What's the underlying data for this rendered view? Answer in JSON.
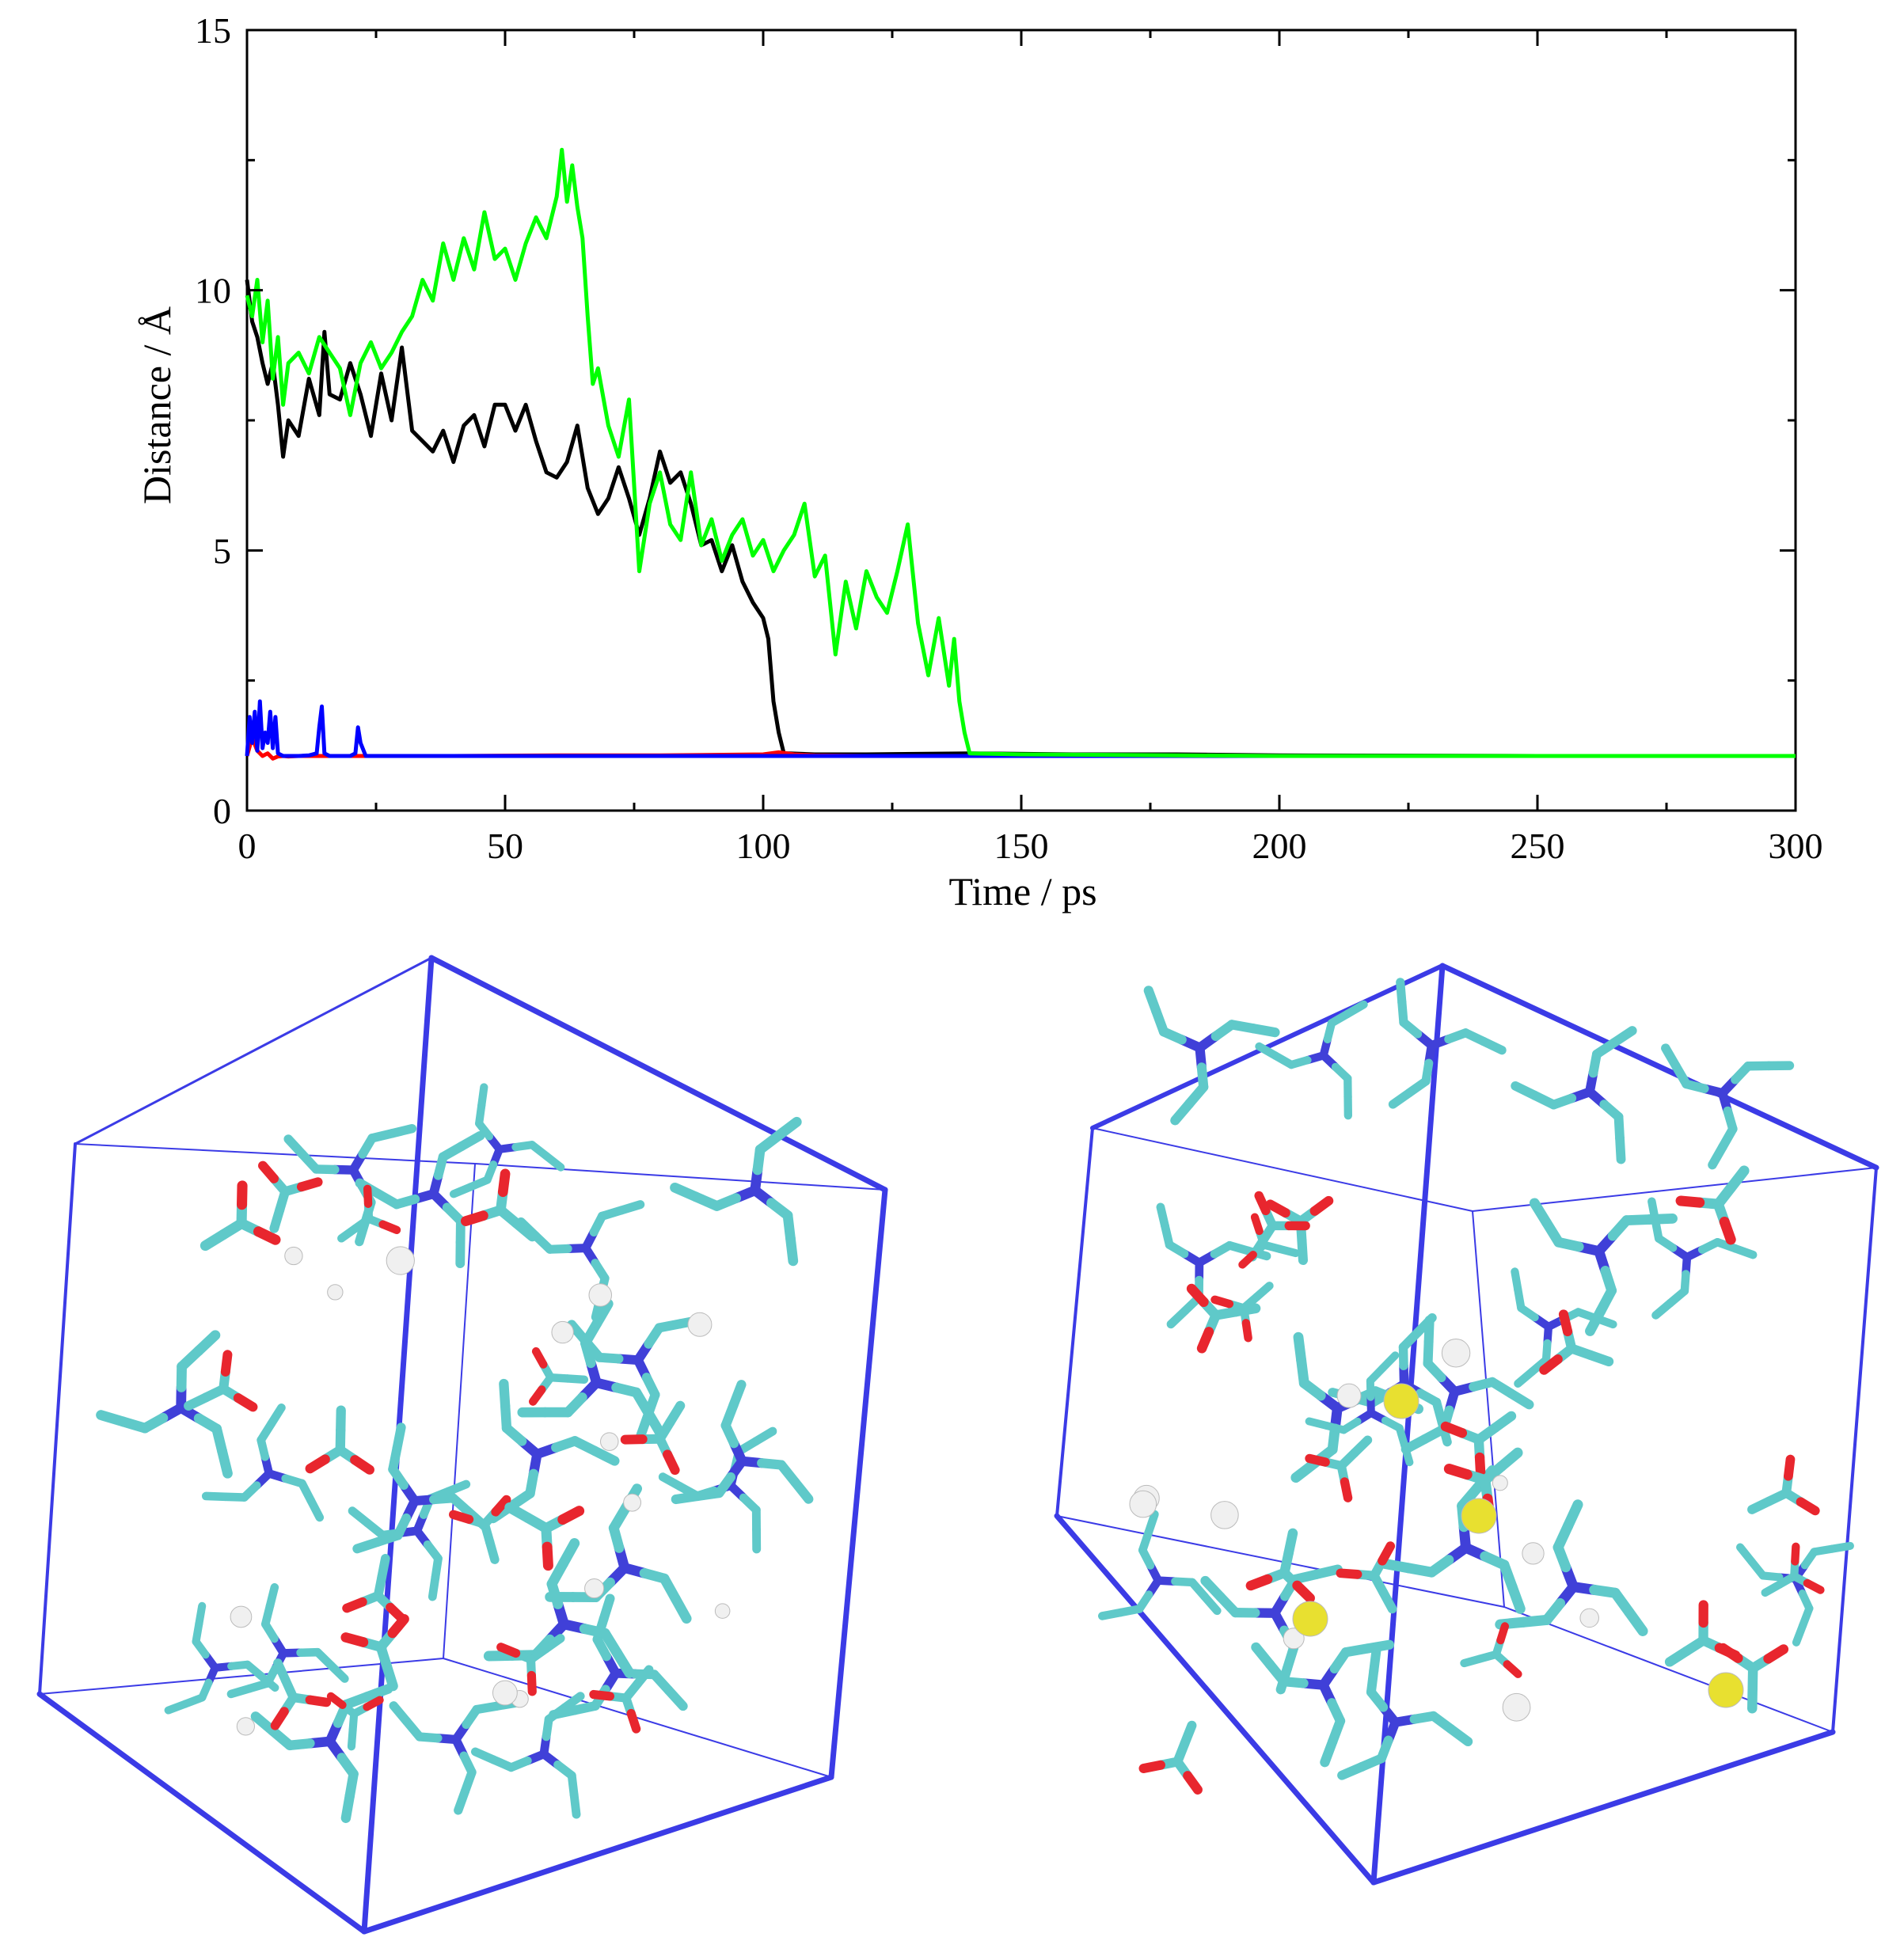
{
  "chart_data": {
    "type": "line",
    "xlabel": "Time / ps",
    "ylabel": "Distance / Å",
    "xlim": [
      0,
      300
    ],
    "ylim": [
      0,
      15
    ],
    "xticks": [
      0,
      50,
      100,
      150,
      200,
      250,
      300
    ],
    "yticks": [
      0,
      5,
      10,
      15
    ],
    "grid": false,
    "series": [
      {
        "color": "#000000",
        "x": [
          0,
          1,
          2,
          3,
          4,
          5,
          6,
          7,
          8,
          10,
          12,
          14,
          15,
          16,
          18,
          20,
          22,
          24,
          26,
          28,
          30,
          32,
          34,
          36,
          38,
          40,
          42,
          44,
          46,
          48,
          50,
          52,
          54,
          56,
          58,
          60,
          62,
          64,
          66,
          68,
          70,
          72,
          74,
          76,
          78,
          80,
          82,
          84,
          86,
          88,
          90,
          92,
          94,
          96,
          98,
          100,
          101,
          102,
          103,
          104,
          105,
          110,
          120,
          140,
          160,
          180,
          200,
          250,
          300
        ],
        "y": [
          10.2,
          9.4,
          9.1,
          8.6,
          8.2,
          8.6,
          7.8,
          6.8,
          7.5,
          7.2,
          8.3,
          7.6,
          9.2,
          8.0,
          7.9,
          8.6,
          8.0,
          7.2,
          8.4,
          7.5,
          8.9,
          7.3,
          7.1,
          6.9,
          7.3,
          6.7,
          7.4,
          7.6,
          7.0,
          7.8,
          7.8,
          7.3,
          7.8,
          7.1,
          6.5,
          6.4,
          6.7,
          7.4,
          6.2,
          5.7,
          6.0,
          6.6,
          6.0,
          5.3,
          6.0,
          6.9,
          6.3,
          6.5,
          5.9,
          5.1,
          5.2,
          4.6,
          5.1,
          4.4,
          4.0,
          3.7,
          3.3,
          2.1,
          1.5,
          1.1,
          1.1,
          1.08,
          1.08,
          1.1,
          1.08,
          1.08,
          1.06,
          1.05,
          1.05
        ]
      },
      {
        "color": "#ff0000",
        "x": [
          0,
          1,
          2,
          3,
          4,
          5,
          6,
          7,
          8,
          10,
          20,
          40,
          60,
          80,
          100,
          103,
          106,
          110,
          120,
          150,
          200,
          250,
          300
        ],
        "y": [
          1.05,
          1.4,
          1.15,
          1.05,
          1.1,
          1.0,
          1.04,
          1.05,
          1.04,
          1.05,
          1.05,
          1.05,
          1.06,
          1.06,
          1.08,
          1.12,
          1.08,
          1.06,
          1.05,
          1.05,
          1.05,
          1.05,
          1.05
        ]
      },
      {
        "color": "#0000ff",
        "x": [
          0,
          0.5,
          1,
          1.5,
          2,
          2.5,
          3,
          3.5,
          4,
          4.5,
          5,
          5.5,
          6,
          7,
          8,
          10,
          12,
          13.5,
          14,
          14.5,
          15,
          16,
          18,
          20,
          21,
          21.5,
          22,
          23,
          25,
          30,
          50,
          100,
          150,
          200,
          250,
          300
        ],
        "y": [
          1.05,
          1.8,
          1.3,
          1.9,
          1.15,
          2.1,
          1.2,
          1.5,
          1.3,
          1.9,
          1.2,
          1.8,
          1.1,
          1.05,
          1.05,
          1.05,
          1.06,
          1.1,
          1.6,
          2.0,
          1.1,
          1.05,
          1.05,
          1.05,
          1.1,
          1.6,
          1.3,
          1.05,
          1.05,
          1.05,
          1.05,
          1.05,
          1.05,
          1.05,
          1.05,
          1.05
        ]
      },
      {
        "color": "#00ff00",
        "x": [
          0,
          1,
          2,
          3,
          4,
          5,
          6,
          7,
          8,
          10,
          12,
          14,
          16,
          18,
          20,
          22,
          24,
          26,
          28,
          30,
          32,
          34,
          36,
          38,
          40,
          42,
          44,
          46,
          48,
          50,
          52,
          54,
          56,
          58,
          60,
          61,
          62,
          63,
          64,
          65,
          66,
          67,
          68,
          70,
          72,
          74,
          76,
          78,
          80,
          82,
          84,
          86,
          88,
          90,
          92,
          94,
          96,
          98,
          100,
          102,
          104,
          106,
          108,
          110,
          112,
          114,
          116,
          118,
          120,
          122,
          124,
          126,
          128,
          130,
          132,
          134,
          136,
          137,
          138,
          139,
          140,
          150,
          200,
          250,
          300
        ],
        "y": [
          9.9,
          9.5,
          10.2,
          9.0,
          9.8,
          8.3,
          9.1,
          7.8,
          8.6,
          8.8,
          8.4,
          9.1,
          8.8,
          8.5,
          7.6,
          8.6,
          9.0,
          8.5,
          8.8,
          9.2,
          9.5,
          10.2,
          9.8,
          10.9,
          10.2,
          11.0,
          10.4,
          11.5,
          10.6,
          10.8,
          10.2,
          10.9,
          11.4,
          11.0,
          11.8,
          12.7,
          11.7,
          12.4,
          11.6,
          11.0,
          9.5,
          8.2,
          8.5,
          7.4,
          6.8,
          7.9,
          4.6,
          5.9,
          6.5,
          5.5,
          5.2,
          6.5,
          5.1,
          5.6,
          4.8,
          5.3,
          5.6,
          4.9,
          5.2,
          4.6,
          5.0,
          5.3,
          5.9,
          4.5,
          4.9,
          3.0,
          4.4,
          3.5,
          4.6,
          4.1,
          3.8,
          4.6,
          5.5,
          3.6,
          2.6,
          3.7,
          2.4,
          3.3,
          2.1,
          1.5,
          1.1,
          1.08,
          1.05,
          1.05,
          1.05
        ]
      }
    ]
  },
  "scene": {
    "colors": {
      "box": "#3b3be6",
      "carbon": "#5fc9c9",
      "oxygen": "#e8262e",
      "nitrogen": "#4040d8",
      "hydrogen": "#f0f0f0",
      "sulfur": "#e8e030"
    }
  }
}
